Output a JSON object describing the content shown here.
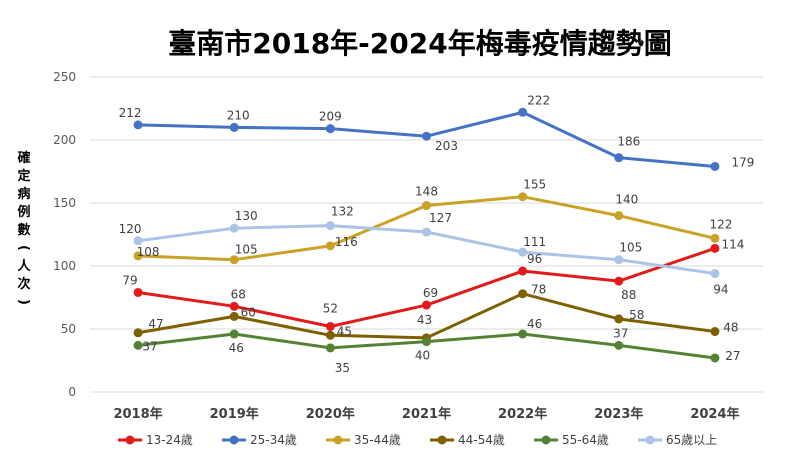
{
  "chart_data": {
    "type": "line",
    "title": "臺南市2018年-2024年梅毒疫情趨勢圖",
    "ylabel": "確定病例數(人次)",
    "xlabel": "",
    "categories": [
      "2018年",
      "2019年",
      "2020年",
      "2021年",
      "2022年",
      "2023年",
      "2024年"
    ],
    "ylim": [
      0,
      250
    ],
    "yticks": [
      0,
      50,
      100,
      150,
      200,
      250
    ],
    "grid": true,
    "legend_position": "bottom",
    "series": [
      {
        "name": "13-24歲",
        "color": "#e31a1c",
        "values": [
          79,
          68,
          52,
          69,
          96,
          88,
          114
        ]
      },
      {
        "name": "25-34歲",
        "color": "#4472c4",
        "values": [
          212,
          210,
          209,
          203,
          222,
          186,
          179
        ]
      },
      {
        "name": "35-44歲",
        "color": "#c9a227",
        "values": [
          108,
          105,
          116,
          148,
          155,
          140,
          122
        ]
      },
      {
        "name": "44-54歲",
        "color": "#7f6000",
        "values": [
          47,
          60,
          45,
          43,
          78,
          58,
          48
        ]
      },
      {
        "name": "55-64歲",
        "color": "#548235",
        "values": [
          37,
          46,
          35,
          40,
          46,
          37,
          27
        ]
      },
      {
        "name": "65歲以上",
        "color": "#a9c4e6",
        "values": [
          120,
          130,
          132,
          127,
          111,
          105,
          94
        ]
      }
    ]
  }
}
